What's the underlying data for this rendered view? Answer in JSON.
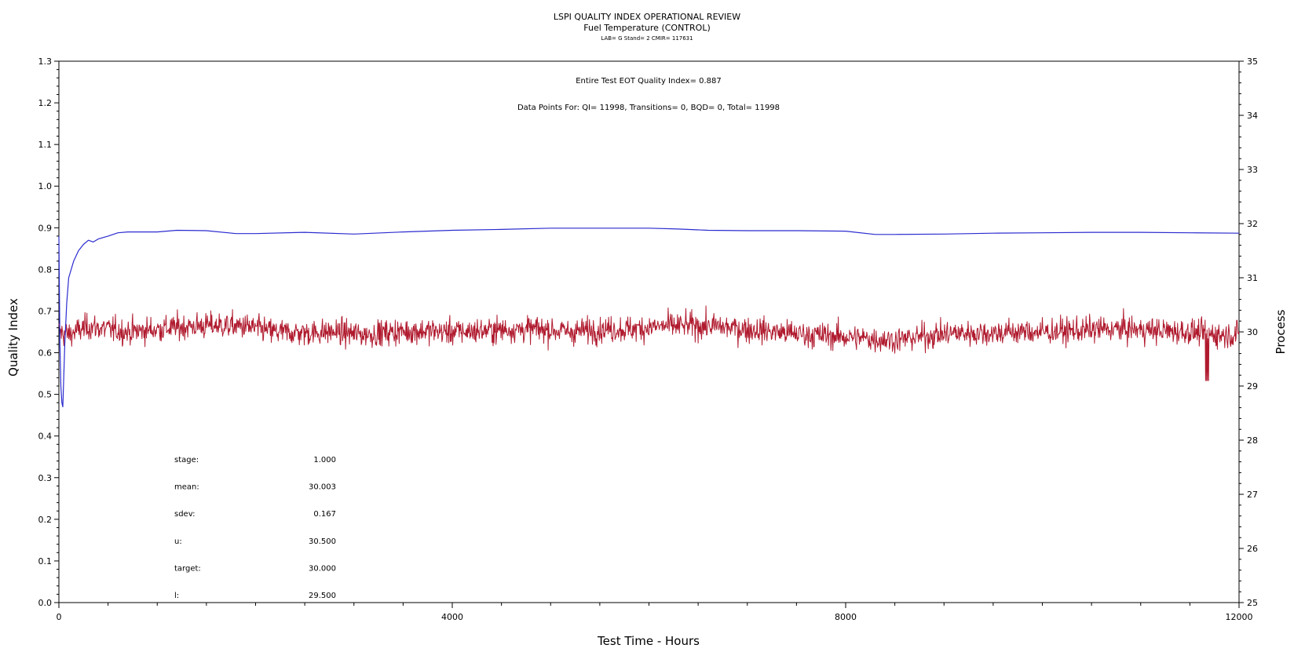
{
  "header": {
    "title": "LSPI QUALITY INDEX OPERATIONAL REVIEW",
    "subtitle": "Fuel Temperature (CONTROL)",
    "meta": "LAB= G Stand= 2 CMIR= 117631"
  },
  "annotations": {
    "quality_index_line": "Entire Test EOT Quality Index=   0.887",
    "data_points_line": "Data Points For: QI= 11998, Transitions=     0, BQD=     0, Total= 11998"
  },
  "stats": [
    {
      "label": "stage:",
      "value": "1.000"
    },
    {
      "label": "mean:",
      "value": "30.003"
    },
    {
      "label": "sdev:",
      "value": "0.167"
    },
    {
      "label": "u:",
      "value": "30.500"
    },
    {
      "label": "target:",
      "value": "30.000"
    },
    {
      "label": "l:",
      "value": "29.500"
    }
  ],
  "chart_data": {
    "type": "line",
    "xlabel": "Test Time - Hours",
    "ylabel": "Quality Index",
    "y2label": "Process",
    "xlim": [
      0,
      12000
    ],
    "ylim": [
      0.0,
      1.3
    ],
    "y2lim": [
      25,
      35
    ],
    "xticks": [
      0,
      4000,
      8000,
      12000
    ],
    "yticks": [
      0.0,
      0.1,
      0.2,
      0.3,
      0.4,
      0.5,
      0.6,
      0.7,
      0.8,
      0.9,
      1.0,
      1.1,
      1.2,
      1.3
    ],
    "y2ticks": [
      25,
      26,
      27,
      28,
      29,
      30,
      31,
      32,
      33,
      34,
      35
    ],
    "grid": false,
    "series": [
      {
        "axis": "left",
        "color": "#2b2bd0",
        "x": [
          0,
          10,
          20,
          30,
          40,
          60,
          80,
          100,
          150,
          200,
          250,
          300,
          350,
          400,
          500,
          600,
          700,
          800,
          1000,
          1200,
          1500,
          1800,
          2000,
          2500,
          3000,
          3500,
          4000,
          4500,
          5000,
          5500,
          6000,
          6300,
          6600,
          7000,
          7500,
          8000,
          8300,
          8500,
          9000,
          9500,
          10000,
          10500,
          11000,
          11500,
          12000
        ],
        "values": [
          0.88,
          0.62,
          0.52,
          0.48,
          0.47,
          0.62,
          0.72,
          0.78,
          0.82,
          0.845,
          0.86,
          0.87,
          0.866,
          0.873,
          0.88,
          0.888,
          0.89,
          0.89,
          0.89,
          0.894,
          0.893,
          0.886,
          0.886,
          0.889,
          0.885,
          0.89,
          0.894,
          0.896,
          0.899,
          0.899,
          0.899,
          0.897,
          0.894,
          0.893,
          0.893,
          0.892,
          0.884,
          0.884,
          0.885,
          0.887,
          0.888,
          0.889,
          0.889,
          0.888,
          0.887
        ]
      },
      {
        "axis": "right",
        "color": "#b01a2e",
        "x": [
          0,
          100,
          300,
          500,
          700,
          1000,
          1300,
          1600,
          1900,
          2200,
          2500,
          2800,
          3100,
          3400,
          3700,
          4000,
          4300,
          4600,
          4900,
          5200,
          5500,
          5800,
          6100,
          6400,
          6700,
          7000,
          7300,
          7600,
          7900,
          8200,
          8500,
          8800,
          9100,
          9400,
          9700,
          10000,
          10300,
          10600,
          10900,
          11200,
          11500,
          11800,
          12000
        ],
        "values": [
          30.0,
          29.95,
          30.1,
          30.05,
          30.0,
          30.05,
          30.1,
          30.12,
          30.1,
          30.0,
          29.98,
          30.0,
          29.95,
          30.0,
          30.02,
          30.0,
          30.02,
          30.05,
          30.05,
          30.0,
          30.05,
          30.05,
          30.1,
          30.12,
          30.1,
          30.05,
          30.0,
          29.95,
          29.92,
          29.88,
          29.85,
          29.92,
          29.98,
          29.98,
          30.0,
          30.0,
          30.02,
          30.05,
          30.05,
          30.02,
          30.0,
          29.95,
          29.95
        ],
        "min": 29.05,
        "max": 30.55,
        "sdev": 0.167
      }
    ]
  }
}
